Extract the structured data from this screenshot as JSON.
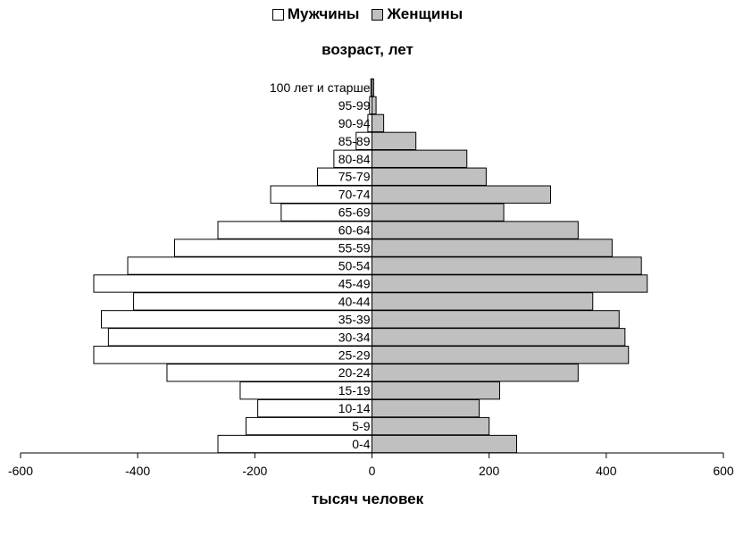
{
  "chart_data": {
    "type": "bar",
    "orientation": "horizontal",
    "title": "возраст, лет",
    "xlabel": "тысяч человек",
    "categories": [
      "0-4",
      "5-9",
      "10-14",
      "15-19",
      "20-24",
      "25-29",
      "30-34",
      "35-39",
      "40-44",
      "45-49",
      "50-54",
      "55-59",
      "60-64",
      "65-69",
      "70-74",
      "75-79",
      "80-84",
      "85-89",
      "90-94",
      "95-99",
      "100 лет и старше"
    ],
    "series": [
      {
        "name": "Мужчины",
        "color": "#ffffff",
        "values": [
          -263,
          -215,
          -195,
          -225,
          -350,
          -475,
          -450,
          -462,
          -407,
          -475,
          -417,
          -337,
          -263,
          -155,
          -173,
          -93,
          -65,
          -27,
          -7,
          -4,
          -2
        ]
      },
      {
        "name": "Женщины",
        "color": "#c0c0c0",
        "values": [
          247,
          200,
          183,
          218,
          352,
          438,
          432,
          422,
          377,
          470,
          460,
          410,
          352,
          225,
          305,
          195,
          162,
          75,
          20,
          7,
          3
        ]
      }
    ],
    "xlim": [
      -600,
      600
    ],
    "xticks": [
      "-600",
      "-400",
      "-200",
      "0",
      "200",
      "400",
      "600"
    ],
    "legend_position": "top"
  }
}
